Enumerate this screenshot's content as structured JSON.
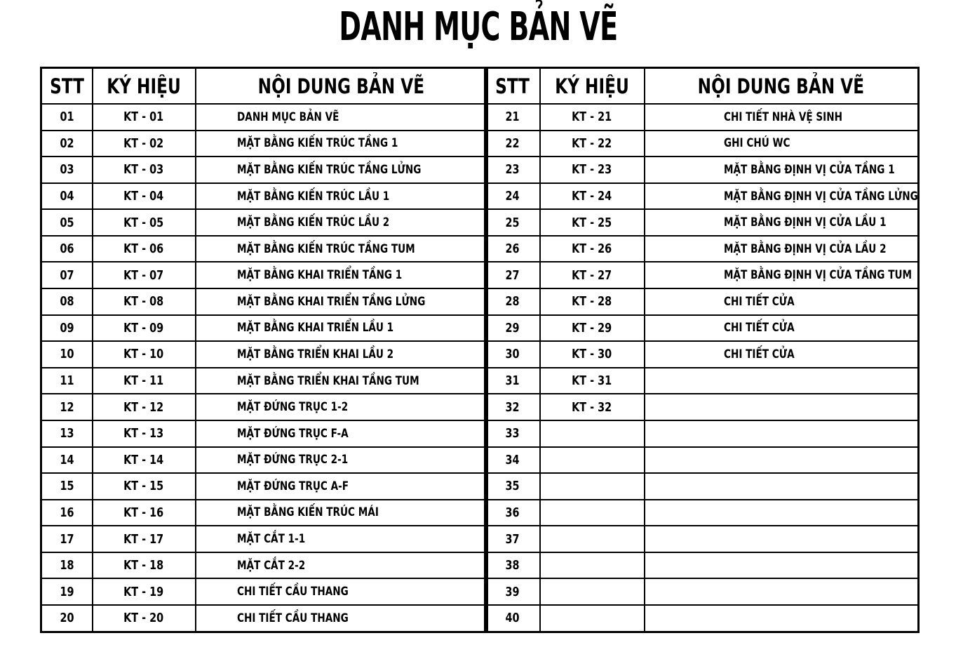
{
  "title": "DANH MỤC BẢN VẼ",
  "columns": {
    "stt": "STT",
    "ky_hieu": "KÝ HIỆU",
    "noi_dung": "NỘI DUNG BẢN VẼ"
  },
  "colors": {
    "line": "#000000",
    "background": "#ffffff",
    "text": "#000000"
  },
  "left_table": {
    "rows": [
      {
        "stt": "01",
        "ky_hieu": "KT - 01",
        "noi_dung": "DANH MỤC BẢN VẼ"
      },
      {
        "stt": "02",
        "ky_hieu": "KT - 02",
        "noi_dung": "MẶT BẰNG KIẾN TRÚC TẦNG 1"
      },
      {
        "stt": "03",
        "ky_hieu": "KT - 03",
        "noi_dung": "MẶT BẰNG KIẾN TRÚC TẦNG LỬNG"
      },
      {
        "stt": "04",
        "ky_hieu": "KT - 04",
        "noi_dung": "MẶT BẰNG KIẾN TRÚC LẦU 1"
      },
      {
        "stt": "05",
        "ky_hieu": "KT - 05",
        "noi_dung": "MẶT BẰNG KIẾN TRÚC LẦU 2"
      },
      {
        "stt": "06",
        "ky_hieu": "KT - 06",
        "noi_dung": "MẶT BẰNG KIẾN TRÚC TẦNG TUM"
      },
      {
        "stt": "07",
        "ky_hieu": "KT - 07",
        "noi_dung": "MẶT BẰNG KHAI TRIỂN TẦNG 1"
      },
      {
        "stt": "08",
        "ky_hieu": "KT - 08",
        "noi_dung": "MẶT BẰNG KHAI TRIỂN TẦNG LỬNG"
      },
      {
        "stt": "09",
        "ky_hieu": "KT - 09",
        "noi_dung": "MẶT BẰNG KHAI TRIỂN LẦU 1"
      },
      {
        "stt": "10",
        "ky_hieu": "KT - 10",
        "noi_dung": "MẶT BẰNG TRIỂN KHAI LẦU 2"
      },
      {
        "stt": "11",
        "ky_hieu": "KT - 11",
        "noi_dung": "MẶT BẰNG TRIỂN KHAI TẦNG TUM"
      },
      {
        "stt": "12",
        "ky_hieu": "KT - 12",
        "noi_dung": "MẶT ĐỨNG TRỤC 1-2"
      },
      {
        "stt": "13",
        "ky_hieu": "KT - 13",
        "noi_dung": "MẶT ĐỨNG TRỤC F-A"
      },
      {
        "stt": "14",
        "ky_hieu": "KT - 14",
        "noi_dung": "MẶT ĐỨNG TRỤC 2-1"
      },
      {
        "stt": "15",
        "ky_hieu": "KT - 15",
        "noi_dung": "MẶT ĐỨNG TRỤC A-F"
      },
      {
        "stt": "16",
        "ky_hieu": "KT - 16",
        "noi_dung": "MẶT BẰNG KIẾN TRÚC MÁI"
      },
      {
        "stt": "17",
        "ky_hieu": "KT - 17",
        "noi_dung": "MẶT CẮT 1-1"
      },
      {
        "stt": "18",
        "ky_hieu": "KT - 18",
        "noi_dung": "MẶT CẮT 2-2"
      },
      {
        "stt": "19",
        "ky_hieu": "KT - 19",
        "noi_dung": "CHI TIẾT CẦU THANG"
      },
      {
        "stt": "20",
        "ky_hieu": "KT - 20",
        "noi_dung": "CHI TIẾT CẦU THANG"
      }
    ]
  },
  "right_table": {
    "rows": [
      {
        "stt": "21",
        "ky_hieu": "KT - 21",
        "noi_dung": "CHI TIẾT NHÀ VỆ SINH"
      },
      {
        "stt": "22",
        "ky_hieu": "KT - 22",
        "noi_dung": "GHI CHÚ WC"
      },
      {
        "stt": "23",
        "ky_hieu": "KT - 23",
        "noi_dung": "MẶT BẰNG ĐỊNH VỊ CỬA TẦNG 1"
      },
      {
        "stt": "24",
        "ky_hieu": "KT - 24",
        "noi_dung": "MẶT BẰNG ĐỊNH VỊ CỬA TẦNG LỬNG"
      },
      {
        "stt": "25",
        "ky_hieu": "KT - 25",
        "noi_dung": "MẶT BẰNG ĐỊNH VỊ CỬA LẦU 1"
      },
      {
        "stt": "26",
        "ky_hieu": "KT - 26",
        "noi_dung": "MẶT BẰNG ĐỊNH VỊ CỬA LẦU 2"
      },
      {
        "stt": "27",
        "ky_hieu": "KT - 27",
        "noi_dung": "MẶT BẰNG ĐỊNH VỊ CỬA TẦNG TUM"
      },
      {
        "stt": "28",
        "ky_hieu": "KT - 28",
        "noi_dung": "CHI TIẾT CỬA"
      },
      {
        "stt": "29",
        "ky_hieu": "KT - 29",
        "noi_dung": "CHI TIẾT CỬA"
      },
      {
        "stt": "30",
        "ky_hieu": "KT - 30",
        "noi_dung": "CHI TIẾT CỬA"
      },
      {
        "stt": "31",
        "ky_hieu": "KT - 31",
        "noi_dung": ""
      },
      {
        "stt": "32",
        "ky_hieu": "KT - 32",
        "noi_dung": ""
      },
      {
        "stt": "33",
        "ky_hieu": "",
        "noi_dung": ""
      },
      {
        "stt": "34",
        "ky_hieu": "",
        "noi_dung": ""
      },
      {
        "stt": "35",
        "ky_hieu": "",
        "noi_dung": ""
      },
      {
        "stt": "36",
        "ky_hieu": "",
        "noi_dung": ""
      },
      {
        "stt": "37",
        "ky_hieu": "",
        "noi_dung": ""
      },
      {
        "stt": "38",
        "ky_hieu": "",
        "noi_dung": ""
      },
      {
        "stt": "39",
        "ky_hieu": "",
        "noi_dung": ""
      },
      {
        "stt": "40",
        "ky_hieu": "",
        "noi_dung": ""
      }
    ]
  }
}
